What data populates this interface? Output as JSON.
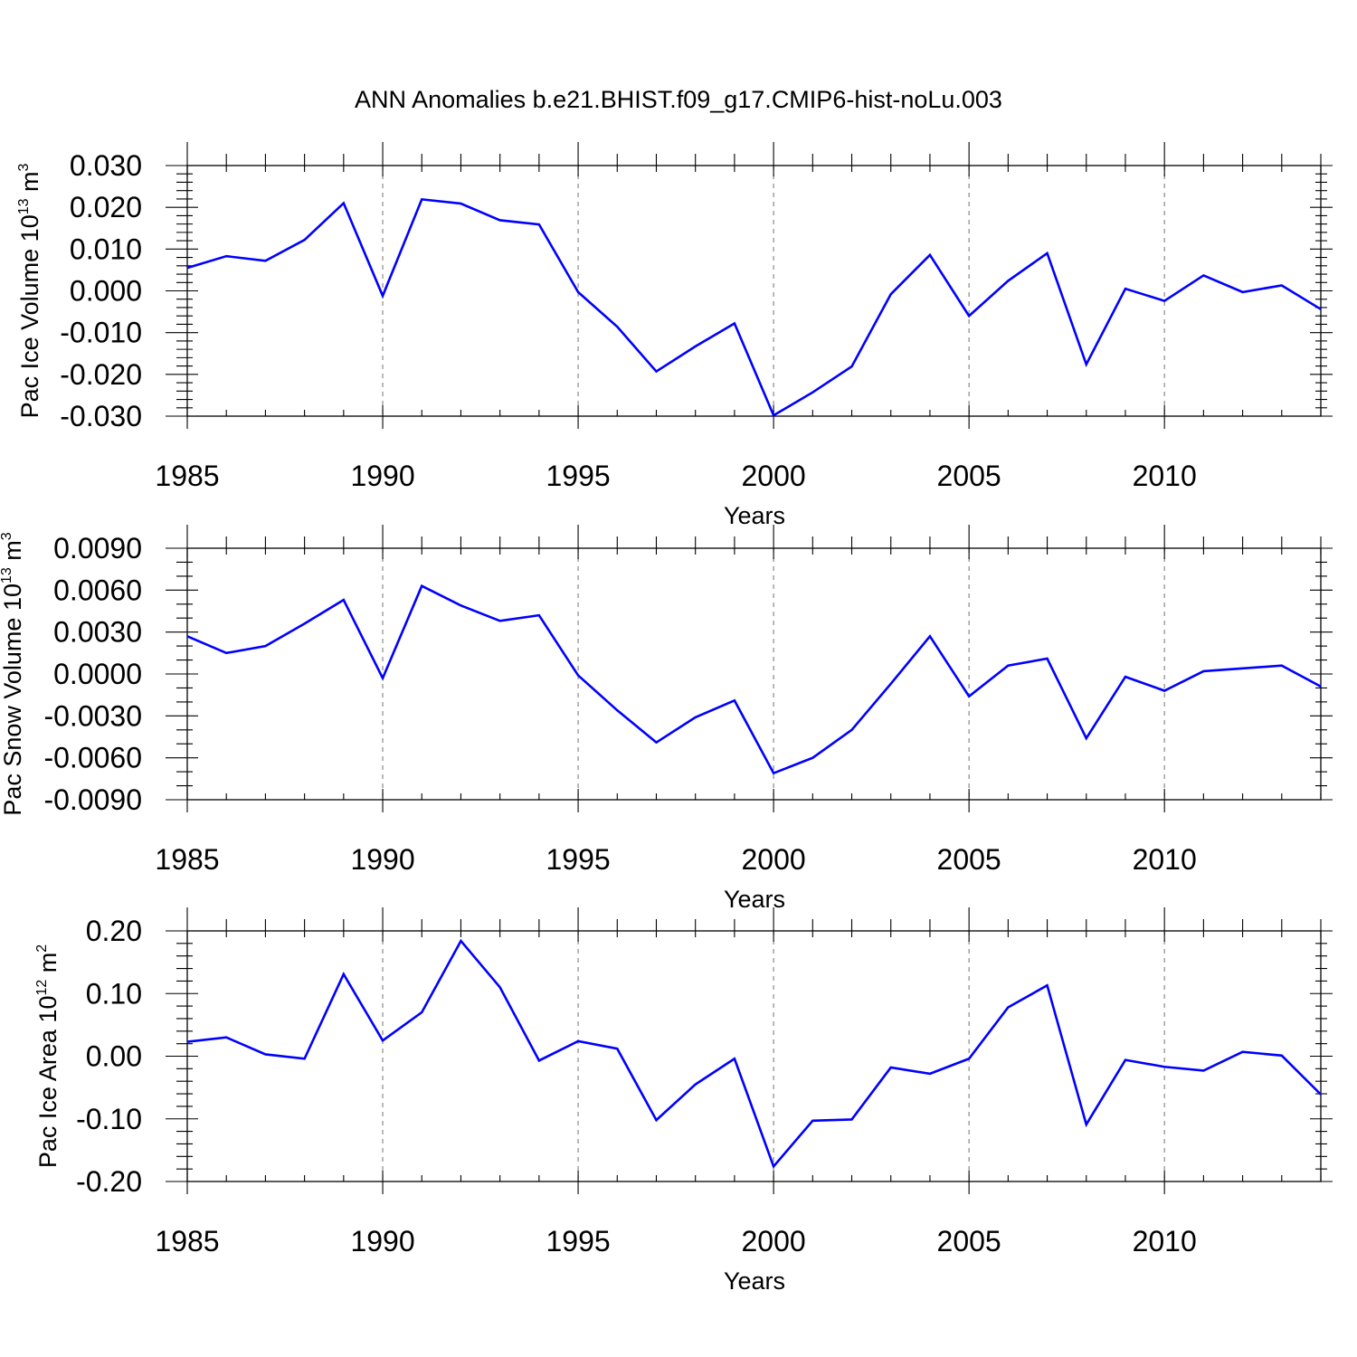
{
  "title": "ANN Anomalies b.e21.BHIST.f09_g17.CMIP6-hist-noLu.003",
  "line_color": "#0000ff",
  "chart_data": [
    {
      "type": "line",
      "ylabel": "Pac Ice Volume 10",
      "ylabel_exponent": "13",
      "ylabel_unit": " m",
      "ylabel_unit_exponent": "3",
      "xlabel": "Years",
      "xlim": [
        1985,
        2014
      ],
      "ylim": [
        -0.03,
        0.03
      ],
      "x_ticks": [
        1985,
        1990,
        1995,
        2000,
        2005,
        2010
      ],
      "x_tick_labels": [
        "1985",
        "1990",
        "1995",
        "2000",
        "2005",
        "2010"
      ],
      "y_ticks": [
        -0.03,
        -0.02,
        -0.01,
        0.0,
        0.01,
        0.02,
        0.03
      ],
      "y_tick_labels": [
        "-0.030",
        "-0.020",
        "-0.010",
        "0.000",
        "0.010",
        "0.020",
        "0.030"
      ],
      "grid": "dashed vertical lines at labeled years",
      "x": [
        1985,
        1986,
        1987,
        1988,
        1989,
        1990,
        1991,
        1992,
        1993,
        1994,
        1995,
        1996,
        1997,
        1998,
        1999,
        2000,
        2001,
        2002,
        2003,
        2004,
        2005,
        2006,
        2007,
        2008,
        2009,
        2010,
        2011,
        2012,
        2013,
        2014
      ],
      "series": [
        {
          "values": [
            0.0055,
            0.0083,
            0.0072,
            0.0122,
            0.021,
            -0.0012,
            0.0219,
            0.0209,
            0.0169,
            0.0159,
            -0.0003,
            -0.0086,
            -0.0193,
            -0.0133,
            -0.0078,
            -0.0298,
            -0.0243,
            -0.0181,
            -0.0008,
            0.0086,
            -0.006,
            0.0024,
            0.009,
            -0.0176,
            0.0005,
            -0.0024,
            0.0037,
            -0.0003,
            0.0013,
            -0.0044
          ]
        }
      ]
    },
    {
      "type": "line",
      "ylabel": "Pac Snow Volume 10",
      "ylabel_exponent": "13",
      "ylabel_unit": " m",
      "ylabel_unit_exponent": "3",
      "xlabel": "Years",
      "xlim": [
        1985,
        2014
      ],
      "ylim": [
        -0.009,
        0.009
      ],
      "x_ticks": [
        1985,
        1990,
        1995,
        2000,
        2005,
        2010
      ],
      "x_tick_labels": [
        "1985",
        "1990",
        "1995",
        "2000",
        "2005",
        "2010"
      ],
      "y_ticks": [
        -0.009,
        -0.006,
        -0.003,
        0.0,
        0.003,
        0.006,
        0.009
      ],
      "y_tick_labels": [
        "-0.0090",
        "-0.0060",
        "-0.0030",
        "0.0000",
        "0.0030",
        "0.0060",
        "0.0090"
      ],
      "grid": "dashed vertical lines at labeled years",
      "x": [
        1985,
        1986,
        1987,
        1988,
        1989,
        1990,
        1991,
        1992,
        1993,
        1994,
        1995,
        1996,
        1997,
        1998,
        1999,
        2000,
        2001,
        2002,
        2003,
        2004,
        2005,
        2006,
        2007,
        2008,
        2009,
        2010,
        2011,
        2012,
        2013,
        2014
      ],
      "series": [
        {
          "values": [
            0.0027,
            0.0015,
            0.002,
            0.0036,
            0.0053,
            -0.0003,
            0.0063,
            0.0049,
            0.0038,
            0.0042,
            -0.0001,
            -0.0026,
            -0.0049,
            -0.0031,
            -0.0019,
            -0.0071,
            -0.006,
            -0.004,
            -0.0007,
            0.0027,
            -0.0016,
            0.0006,
            0.0011,
            -0.0046,
            -0.0002,
            -0.0012,
            0.0002,
            0.0004,
            0.0006,
            -0.0009
          ]
        }
      ]
    },
    {
      "type": "line",
      "ylabel": "Pac Ice Area 10",
      "ylabel_exponent": "12",
      "ylabel_unit": " m",
      "ylabel_unit_exponent": "2",
      "xlabel": "Years",
      "xlim": [
        1985,
        2014
      ],
      "ylim": [
        -0.2,
        0.2
      ],
      "x_ticks": [
        1985,
        1990,
        1995,
        2000,
        2005,
        2010
      ],
      "x_tick_labels": [
        "1985",
        "1990",
        "1995",
        "2000",
        "2005",
        "2010"
      ],
      "y_ticks": [
        -0.2,
        -0.1,
        0.0,
        0.1,
        0.2
      ],
      "y_tick_labels": [
        "-0.20",
        "-0.10",
        "0.00",
        "0.10",
        "0.20"
      ],
      "grid": "dashed vertical lines at labeled years",
      "x": [
        1985,
        1986,
        1987,
        1988,
        1989,
        1990,
        1991,
        1992,
        1993,
        1994,
        1995,
        1996,
        1997,
        1998,
        1999,
        2000,
        2001,
        2002,
        2003,
        2004,
        2005,
        2006,
        2007,
        2008,
        2009,
        2010,
        2011,
        2012,
        2013,
        2014
      ],
      "series": [
        {
          "values": [
            0.023,
            0.03,
            0.003,
            -0.004,
            0.131,
            0.025,
            0.07,
            0.184,
            0.11,
            -0.007,
            0.024,
            0.012,
            -0.102,
            -0.045,
            -0.004,
            -0.176,
            -0.103,
            -0.101,
            -0.018,
            -0.028,
            -0.004,
            0.078,
            0.113,
            -0.109,
            -0.006,
            -0.017,
            -0.023,
            0.007,
            0.001,
            -0.061
          ]
        }
      ]
    }
  ]
}
